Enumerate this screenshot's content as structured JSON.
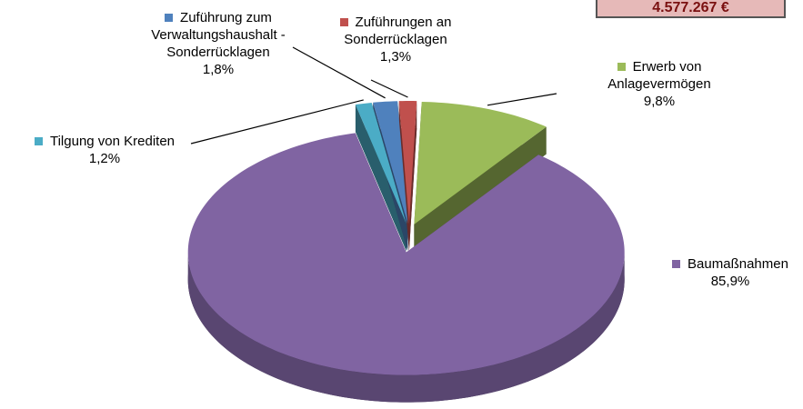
{
  "chart_data": {
    "type": "pie",
    "categories": [
      "Erwerb von Anlagevermögen",
      "Baumaßnahmen",
      "Tilgung von Krediten",
      "Zuführung zum Verwaltungshaushalt - Sonderrücklagen",
      "Zuführungen an Sonderrücklagen"
    ],
    "values": [
      9.8,
      85.9,
      1.2,
      1.8,
      1.3
    ],
    "value_labels": [
      "9,8%",
      "85,9%",
      "1,2%",
      "1,8%",
      "1,3%"
    ],
    "colors": [
      "#9bbb59",
      "#8064a2",
      "#4bacc6",
      "#4f81bd",
      "#c0504d"
    ]
  },
  "total_box": {
    "text": "4.577.267 €"
  }
}
